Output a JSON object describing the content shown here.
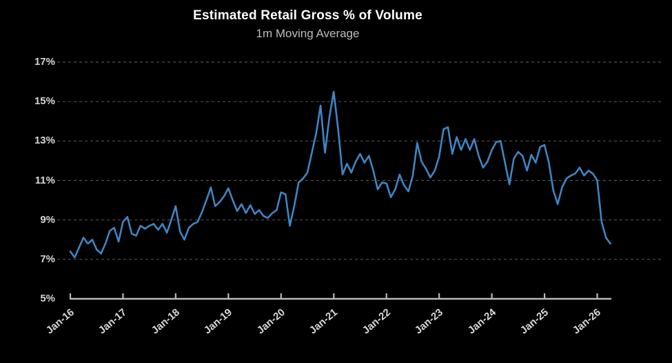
{
  "chart": {
    "title": "Estimated Retail Gross % of Volume",
    "subtitle": "1m Moving Average",
    "colors": {
      "background": "#000000",
      "line": "#3f86c5",
      "grid": "#565046",
      "axis": "#b8b8b8",
      "title_text": "#ffffff",
      "subtitle_text": "#bdbdbd",
      "tick_text": "#d6d6d6"
    }
  },
  "chart_data": {
    "type": "line",
    "title": "Estimated Retail Gross % of Volume",
    "subtitle": "1m Moving Average",
    "xlabel": "",
    "ylabel": "",
    "ylim": [
      5,
      17
    ],
    "y_ticks": [
      "17%",
      "15%",
      "13%",
      "11%",
      "9%",
      "7%",
      "5%"
    ],
    "y_tick_values": [
      17,
      15,
      13,
      11,
      9,
      7,
      5
    ],
    "x_ticks": [
      "Jan-16",
      "Jan-17",
      "Jan-18",
      "Jan-19",
      "Jan-20",
      "Jan-21",
      "Jan-22",
      "Jan-23",
      "Jan-24",
      "Jan-25",
      "Jan-26"
    ],
    "grid": "horizontal dashed",
    "legend": "none",
    "series_name": "Estimated retail gross % of volume (1m moving average)",
    "x": [
      "Jan-16",
      "Feb-16",
      "Mar-16",
      "Apr-16",
      "May-16",
      "Jun-16",
      "Jul-16",
      "Aug-16",
      "Sep-16",
      "Oct-16",
      "Nov-16",
      "Dec-16",
      "Jan-17",
      "Feb-17",
      "Mar-17",
      "Apr-17",
      "May-17",
      "Jun-17",
      "Jul-17",
      "Aug-17",
      "Sep-17",
      "Oct-17",
      "Nov-17",
      "Dec-17",
      "Jan-18",
      "Feb-18",
      "Mar-18",
      "Apr-18",
      "May-18",
      "Jun-18",
      "Jul-18",
      "Aug-18",
      "Sep-18",
      "Oct-18",
      "Nov-18",
      "Dec-18",
      "Jan-19",
      "Feb-19",
      "Mar-19",
      "Apr-19",
      "May-19",
      "Jun-19",
      "Jul-19",
      "Aug-19",
      "Sep-19",
      "Oct-19",
      "Nov-19",
      "Dec-19",
      "Jan-20",
      "Feb-20",
      "Mar-20",
      "Apr-20",
      "May-20",
      "Jun-20",
      "Jul-20",
      "Aug-20",
      "Sep-20",
      "Oct-20",
      "Nov-20",
      "Dec-20",
      "Jan-21",
      "Feb-21",
      "Mar-21",
      "Apr-21",
      "May-21",
      "Jun-21",
      "Jul-21",
      "Aug-21",
      "Sep-21",
      "Oct-21",
      "Nov-21",
      "Dec-21",
      "Jan-22",
      "Feb-22",
      "Mar-22",
      "Apr-22",
      "May-22",
      "Jun-22",
      "Jul-22",
      "Aug-22",
      "Sep-22",
      "Oct-22",
      "Nov-22",
      "Dec-22",
      "Jan-23",
      "Feb-23",
      "Mar-23",
      "Apr-23",
      "May-23",
      "Jun-23",
      "Jul-23",
      "Aug-23",
      "Sep-23",
      "Oct-23",
      "Nov-23",
      "Dec-23",
      "Jan-24",
      "Feb-24",
      "Mar-24",
      "Apr-24",
      "May-24",
      "Jun-24",
      "Jul-24",
      "Aug-24",
      "Sep-24",
      "Oct-24",
      "Nov-24",
      "Dec-24",
      "Jan-25",
      "Feb-25",
      "Mar-25",
      "Apr-25",
      "May-25",
      "Jun-25",
      "Jul-25",
      "Aug-25",
      "Sep-25",
      "Oct-25",
      "Nov-25",
      "Dec-25",
      "Jan-26",
      "Feb-26",
      "Mar-26",
      "Apr-26"
    ],
    "values": [
      7.4,
      7.1,
      7.6,
      8.1,
      7.8,
      8.0,
      7.5,
      7.3,
      7.8,
      8.45,
      8.6,
      7.9,
      8.9,
      9.15,
      8.3,
      8.2,
      8.7,
      8.55,
      8.7,
      8.8,
      8.5,
      8.8,
      8.35,
      9.0,
      9.7,
      8.4,
      8.0,
      8.6,
      8.8,
      8.9,
      9.4,
      10.0,
      10.65,
      9.7,
      9.9,
      10.2,
      10.6,
      10.0,
      9.45,
      9.8,
      9.35,
      9.75,
      9.3,
      9.5,
      9.2,
      9.1,
      9.35,
      9.5,
      10.4,
      10.3,
      8.7,
      9.7,
      10.9,
      11.1,
      11.4,
      12.4,
      13.4,
      14.8,
      12.4,
      14.2,
      15.5,
      13.6,
      11.3,
      11.85,
      11.4,
      11.95,
      12.35,
      11.9,
      12.25,
      11.5,
      10.55,
      10.9,
      10.85,
      10.15,
      10.55,
      11.3,
      10.75,
      10.45,
      11.25,
      12.9,
      11.95,
      11.6,
      11.15,
      11.5,
      12.2,
      13.6,
      13.7,
      12.35,
      13.2,
      12.55,
      13.1,
      12.55,
      13.1,
      12.25,
      11.65,
      11.95,
      12.55,
      12.95,
      13.0,
      11.9,
      10.8,
      12.1,
      12.45,
      12.25,
      11.5,
      12.3,
      11.9,
      12.7,
      12.8,
      11.9,
      10.5,
      9.8,
      10.65,
      11.1,
      11.25,
      11.35,
      11.65,
      11.25,
      11.5,
      11.35,
      11.0,
      8.9,
      8.1,
      7.8
    ]
  }
}
